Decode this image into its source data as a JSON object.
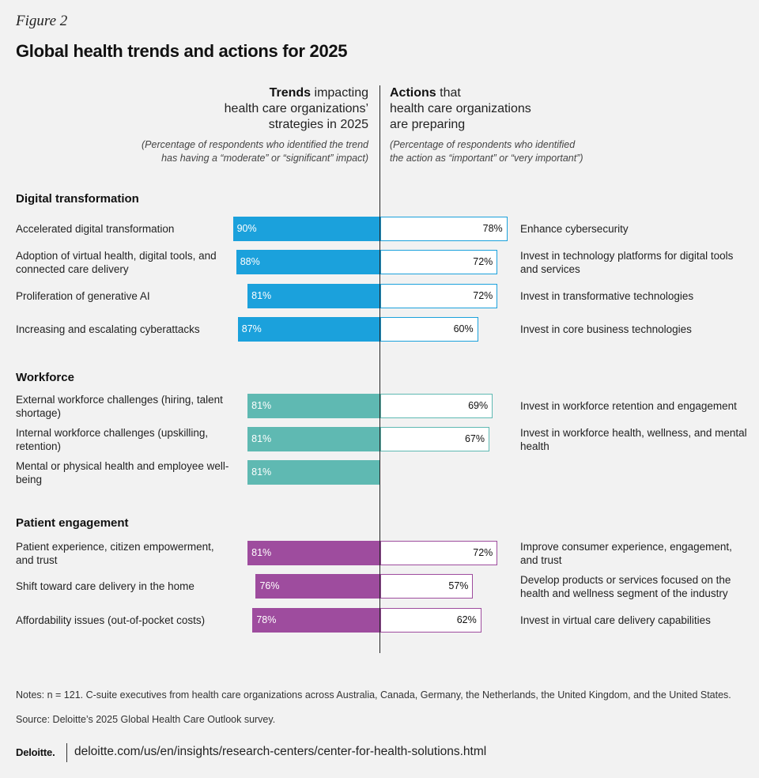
{
  "figure_label": "Figure 2",
  "title": "Global health  trends and actions for 2025",
  "left_header": {
    "strong": "Trends",
    "rest_1": " impacting",
    "line_2": "health care organizations’",
    "line_3": "strategies in 2025"
  },
  "left_subheader": {
    "line_1": "(Percentage of respondents who identified the trend",
    "line_2": "has having a  “moderate” or “significant” impact)"
  },
  "right_header": {
    "strong": "Actions",
    "rest_1": " that",
    "line_2": "health care organizations",
    "line_3": "are preparing"
  },
  "right_subheader": {
    "line_1": "(Percentage of respondents who identified",
    "line_2": "the action as “important” or “very important”)"
  },
  "colors": {
    "digital": "#1ba1dc",
    "workforce": "#5fb9b2",
    "patient": "#9e4c9e",
    "background": "#f2f2f2"
  },
  "chart_data": {
    "type": "bar",
    "layout": "diverging",
    "sections": [
      {
        "name": "Digital transformation",
        "color": "#1ba1dc",
        "rows": [
          {
            "trend": "Accelerated digital transformation",
            "trend_value": 90,
            "trend_label": "90%",
            "action": "Enhance cybersecurity",
            "action_value": 78,
            "action_label": "78%"
          },
          {
            "trend": "Adoption of virtual health, digital tools, and connected care delivery",
            "trend_value": 88,
            "trend_label": "88%",
            "action": "Invest in technology platforms for digital tools and services",
            "action_value": 72,
            "action_label": "72%"
          },
          {
            "trend": "Proliferation of generative AI",
            "trend_value": 81,
            "trend_label": "81%",
            "action": "Invest in transformative technologies",
            "action_value": 72,
            "action_label": "72%"
          },
          {
            "trend": "Increasing and escalating cyberattacks",
            "trend_value": 87,
            "trend_label": "87%",
            "action": "Invest in core business technologies",
            "action_value": 60,
            "action_label": "60%"
          }
        ]
      },
      {
        "name": "Workforce",
        "color": "#5fb9b2",
        "rows": [
          {
            "trend": "External workforce challenges (hiring, talent shortage)",
            "trend_value": 81,
            "trend_label": "81%",
            "action": "Invest in workforce retention and engagement",
            "action_value": 69,
            "action_label": "69%"
          },
          {
            "trend": "Internal workforce challenges (upskilling, retention)",
            "trend_value": 81,
            "trend_label": "81%",
            "action": "Invest in workforce health, wellness, and mental health",
            "action_value": 67,
            "action_label": "67%"
          },
          {
            "trend": "Mental or physical health and employee well-being",
            "trend_value": 81,
            "trend_label": "81%",
            "action": null,
            "action_value": null,
            "action_label": null
          }
        ]
      },
      {
        "name": "Patient engagement",
        "color": "#9e4c9e",
        "rows": [
          {
            "trend": "Patient experience, citizen empowerment, and trust",
            "trend_value": 81,
            "trend_label": "81%",
            "action": "Improve consumer experience, engagement, and trust",
            "action_value": 72,
            "action_label": "72%"
          },
          {
            "trend": "Shift toward care delivery in the home",
            "trend_value": 76,
            "trend_label": "76%",
            "action": "Develop products or services focused on the health and wellness segment of the industry",
            "action_value": 57,
            "action_label": "57%"
          },
          {
            "trend": "Affordability issues (out-of-pocket costs)",
            "trend_value": 78,
            "trend_label": "78%",
            "action": "Invest in virtual care delivery capabilities",
            "action_value": 62,
            "action_label": "62%"
          }
        ]
      }
    ]
  },
  "notes": "Notes: n = 121. C-suite executives from health care organizations across Australia, Canada, Germany, the Netherlands, the United Kingdom, and the United States.",
  "source": "Source: Deloitte’s 2025 Global Health Care Outlook survey.",
  "brand": "Deloitte.",
  "url": "deloitte.com/us/en/insights/research-centers/center-for-health-solutions.html"
}
